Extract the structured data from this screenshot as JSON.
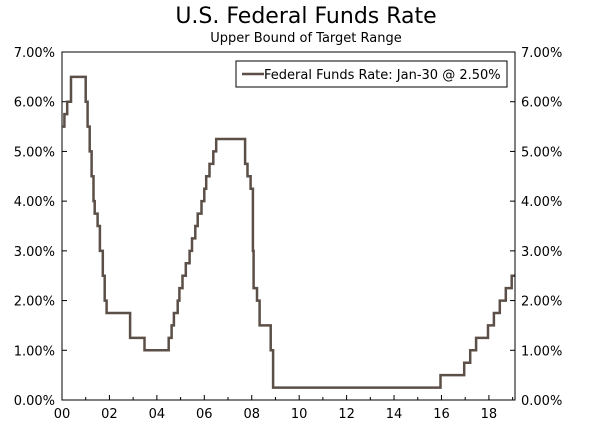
{
  "chart_data": {
    "type": "line",
    "title": "U.S. Federal Funds Rate",
    "subtitle": "Upper Bound of Target Range",
    "xlabel": "",
    "ylabel": "",
    "xlim": [
      2000,
      2019.1
    ],
    "ylim": [
      0,
      7
    ],
    "x_ticks": [
      {
        "value": 2000,
        "label": "00"
      },
      {
        "value": 2002,
        "label": "02"
      },
      {
        "value": 2004,
        "label": "04"
      },
      {
        "value": 2006,
        "label": "06"
      },
      {
        "value": 2008,
        "label": "08"
      },
      {
        "value": 2010,
        "label": "10"
      },
      {
        "value": 2012,
        "label": "12"
      },
      {
        "value": 2014,
        "label": "14"
      },
      {
        "value": 2016,
        "label": "16"
      },
      {
        "value": 2018,
        "label": "18"
      }
    ],
    "y_ticks": [
      {
        "value": 0,
        "label": "0.00%"
      },
      {
        "value": 1,
        "label": "1.00%"
      },
      {
        "value": 2,
        "label": "2.00%"
      },
      {
        "value": 3,
        "label": "3.00%"
      },
      {
        "value": 4,
        "label": "4.00%"
      },
      {
        "value": 5,
        "label": "5.00%"
      },
      {
        "value": 6,
        "label": "6.00%"
      },
      {
        "value": 7,
        "label": "7.00%"
      }
    ],
    "legend": "top-right",
    "grid": false,
    "series": [
      {
        "name": "Federal Funds Rate: Jan-30 @ 2.50%",
        "color": "#5b4f47",
        "step": "post",
        "x": [
          2000.0,
          2000.1,
          2000.22,
          2000.38,
          2001.0,
          2001.08,
          2001.17,
          2001.25,
          2001.33,
          2001.38,
          2001.5,
          2001.6,
          2001.72,
          2001.75,
          2001.8,
          2001.88,
          2001.95,
          2002.87,
          2003.48,
          2004.5,
          2004.62,
          2004.72,
          2004.88,
          2004.95,
          2005.08,
          2005.22,
          2005.38,
          2005.48,
          2005.62,
          2005.72,
          2005.88,
          2006.0,
          2006.08,
          2006.22,
          2006.38,
          2006.5,
          2007.72,
          2007.82,
          2007.95,
          2008.05,
          2008.08,
          2008.22,
          2008.33,
          2008.8,
          2008.9,
          2008.96,
          2015.96,
          2016.96,
          2017.21,
          2017.46,
          2017.96,
          2018.21,
          2018.46,
          2018.71,
          2018.96,
          2019.08
        ],
        "values": [
          5.5,
          5.75,
          6.0,
          6.5,
          6.0,
          5.5,
          5.0,
          4.5,
          4.0,
          3.75,
          3.5,
          3.0,
          2.5,
          2.5,
          2.0,
          1.75,
          1.75,
          1.25,
          1.0,
          1.25,
          1.5,
          1.75,
          2.0,
          2.25,
          2.5,
          2.75,
          3.0,
          3.25,
          3.5,
          3.75,
          4.0,
          4.25,
          4.5,
          4.75,
          5.0,
          5.25,
          4.75,
          4.5,
          4.25,
          3.0,
          2.25,
          2.0,
          1.5,
          1.0,
          0.25,
          0.25,
          0.5,
          0.75,
          1.0,
          1.25,
          1.5,
          1.75,
          2.0,
          2.25,
          2.5,
          2.5
        ]
      }
    ]
  }
}
